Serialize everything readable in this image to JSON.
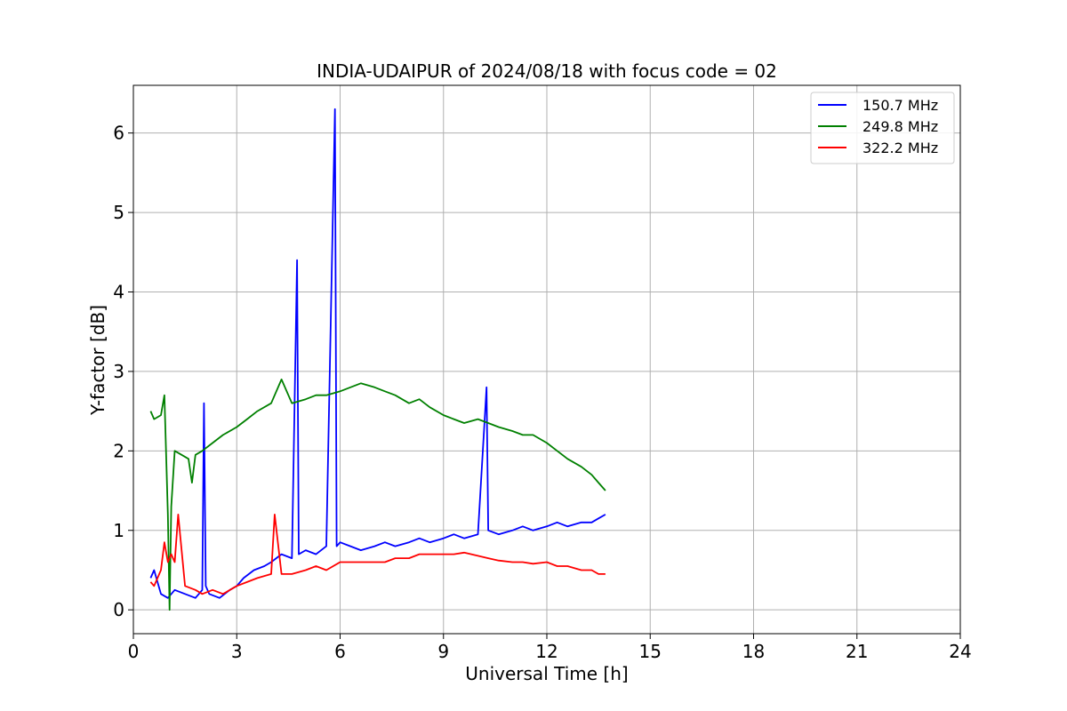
{
  "chart_data": {
    "type": "line",
    "title": "INDIA-UDAIPUR of 2024/08/18 with focus code = 02",
    "xlabel": "Universal Time [h]",
    "ylabel": "Y-factor [dB]",
    "xlim": [
      0,
      24
    ],
    "ylim": [
      -0.3,
      6.6
    ],
    "xticks": [
      0,
      3,
      6,
      9,
      12,
      15,
      18,
      21,
      24
    ],
    "yticks": [
      0,
      1,
      2,
      3,
      4,
      5,
      6
    ],
    "grid": true,
    "legend_position": "top-right",
    "series": [
      {
        "name": "150.7 MHz",
        "color": "#0000ff",
        "x": [
          0.5,
          0.6,
          0.8,
          1.0,
          1.2,
          1.5,
          1.8,
          2.0,
          2.05,
          2.1,
          2.2,
          2.5,
          2.8,
          3.0,
          3.2,
          3.5,
          3.8,
          4.0,
          4.3,
          4.6,
          4.75,
          4.8,
          5.0,
          5.3,
          5.6,
          5.85,
          5.9,
          6.0,
          6.3,
          6.6,
          7.0,
          7.3,
          7.6,
          8.0,
          8.3,
          8.6,
          9.0,
          9.3,
          9.6,
          10.0,
          10.25,
          10.3,
          10.6,
          11.0,
          11.3,
          11.6,
          12.0,
          12.3,
          12.6,
          13.0,
          13.3,
          13.5,
          13.7
        ],
        "y": [
          0.4,
          0.5,
          0.2,
          0.15,
          0.25,
          0.2,
          0.15,
          0.25,
          2.6,
          0.3,
          0.2,
          0.15,
          0.25,
          0.3,
          0.4,
          0.5,
          0.55,
          0.6,
          0.7,
          0.65,
          4.4,
          0.7,
          0.75,
          0.7,
          0.8,
          6.3,
          0.8,
          0.85,
          0.8,
          0.75,
          0.8,
          0.85,
          0.8,
          0.85,
          0.9,
          0.85,
          0.9,
          0.95,
          0.9,
          0.95,
          2.8,
          1.0,
          0.95,
          1.0,
          1.05,
          1.0,
          1.05,
          1.1,
          1.05,
          1.1,
          1.1,
          1.15,
          1.2
        ]
      },
      {
        "name": "249.8 MHz",
        "color": "#008000",
        "x": [
          0.5,
          0.6,
          0.8,
          0.9,
          1.0,
          1.05,
          1.1,
          1.2,
          1.4,
          1.6,
          1.7,
          1.8,
          2.0,
          2.3,
          2.6,
          3.0,
          3.3,
          3.6,
          4.0,
          4.3,
          4.6,
          5.0,
          5.3,
          5.6,
          6.0,
          6.3,
          6.6,
          7.0,
          7.3,
          7.6,
          8.0,
          8.3,
          8.6,
          9.0,
          9.3,
          9.6,
          10.0,
          10.3,
          10.6,
          11.0,
          11.3,
          11.6,
          12.0,
          12.3,
          12.6,
          13.0,
          13.3,
          13.5,
          13.7
        ],
        "y": [
          2.5,
          2.4,
          2.45,
          2.7,
          1.2,
          0.0,
          1.3,
          2.0,
          1.95,
          1.9,
          1.6,
          1.95,
          2.0,
          2.1,
          2.2,
          2.3,
          2.4,
          2.5,
          2.6,
          2.9,
          2.6,
          2.65,
          2.7,
          2.7,
          2.75,
          2.8,
          2.85,
          2.8,
          2.75,
          2.7,
          2.6,
          2.65,
          2.55,
          2.45,
          2.4,
          2.35,
          2.4,
          2.35,
          2.3,
          2.25,
          2.2,
          2.2,
          2.1,
          2.0,
          1.9,
          1.8,
          1.7,
          1.6,
          1.5
        ]
      },
      {
        "name": "322.2 MHz",
        "color": "#ff0000",
        "x": [
          0.5,
          0.6,
          0.8,
          0.9,
          1.0,
          1.1,
          1.2,
          1.3,
          1.5,
          1.8,
          2.0,
          2.3,
          2.6,
          3.0,
          3.3,
          3.6,
          4.0,
          4.1,
          4.3,
          4.6,
          5.0,
          5.3,
          5.6,
          6.0,
          6.3,
          6.6,
          7.0,
          7.3,
          7.6,
          8.0,
          8.3,
          8.6,
          9.0,
          9.3,
          9.6,
          10.0,
          10.3,
          10.6,
          11.0,
          11.3,
          11.6,
          12.0,
          12.3,
          12.6,
          13.0,
          13.3,
          13.5,
          13.7
        ],
        "y": [
          0.35,
          0.3,
          0.5,
          0.85,
          0.6,
          0.7,
          0.6,
          1.2,
          0.3,
          0.25,
          0.2,
          0.25,
          0.2,
          0.3,
          0.35,
          0.4,
          0.45,
          1.2,
          0.45,
          0.45,
          0.5,
          0.55,
          0.5,
          0.6,
          0.6,
          0.6,
          0.6,
          0.6,
          0.65,
          0.65,
          0.7,
          0.7,
          0.7,
          0.7,
          0.72,
          0.68,
          0.65,
          0.62,
          0.6,
          0.6,
          0.58,
          0.6,
          0.55,
          0.55,
          0.5,
          0.5,
          0.45,
          0.45
        ]
      }
    ]
  }
}
